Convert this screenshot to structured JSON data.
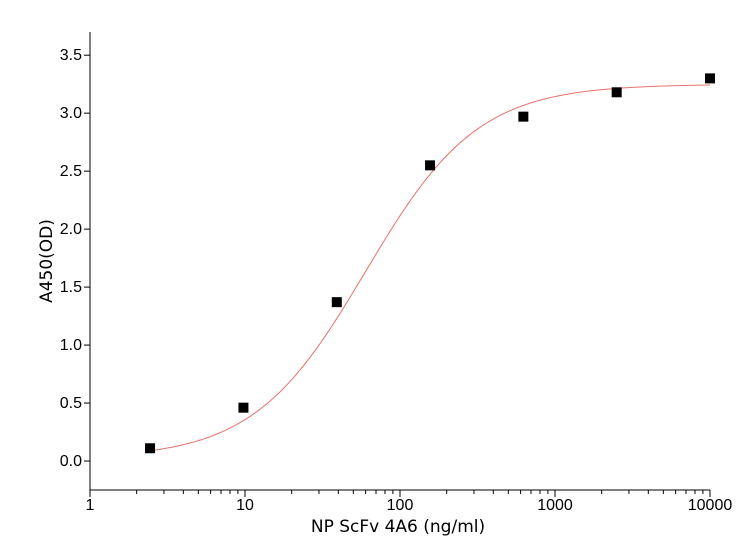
{
  "chart_data": {
    "type": "scatter",
    "title": "",
    "xlabel": "NP ScFv 4A6 (ng/ml)",
    "ylabel": "A450(OD)",
    "xscale": "log",
    "xlim": [
      1,
      10000
    ],
    "ylim": [
      -0.25,
      3.7
    ],
    "x_ticks": [
      1,
      10,
      100,
      1000,
      10000
    ],
    "x_tick_labels": [
      "1",
      "10",
      "100",
      "1000",
      "10000"
    ],
    "y_ticks": [
      0.0,
      0.5,
      1.0,
      1.5,
      2.0,
      2.5,
      3.0,
      3.5
    ],
    "y_tick_labels": [
      "0.0",
      "0.5",
      "1.0",
      "1.5",
      "2.0",
      "2.5",
      "3.0",
      "3.5"
    ],
    "grid": false,
    "legend": "none",
    "series": [
      {
        "values_x": [
          2.44,
          9.77,
          39.1,
          156.25,
          625,
          2500,
          10000
        ],
        "values_y": [
          0.11,
          0.46,
          1.37,
          2.55,
          2.97,
          3.18,
          3.3
        ],
        "marker": "square",
        "color": "#000000"
      }
    ],
    "fit_curve": {
      "model": "4PL",
      "color": "#e8716b",
      "bottom": 0.02,
      "top": 3.25,
      "ec50": 60,
      "hill": 1.2
    }
  }
}
